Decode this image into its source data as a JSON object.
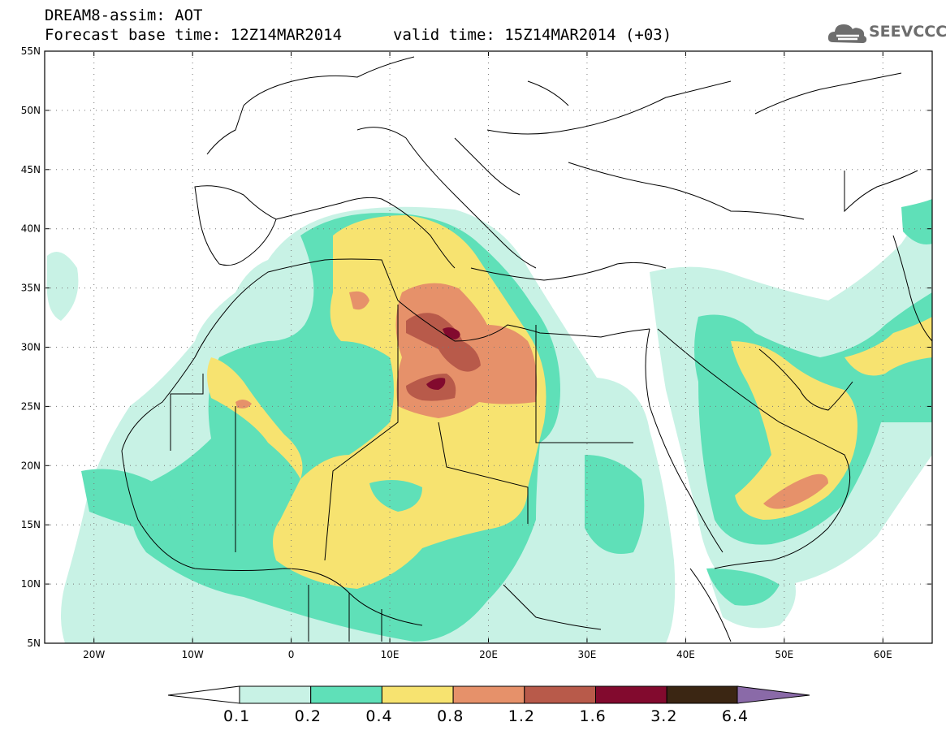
{
  "header": {
    "title": "DREAM8-assim: AOT",
    "base_time": "Forecast base time: 12Z14MAR2014",
    "valid_time": "valid time: 15Z14MAR2014 (+03)"
  },
  "logo": {
    "text": "SEEVCCC",
    "icon": "cloud-icon"
  },
  "map": {
    "lat_labels": [
      "55N",
      "50N",
      "45N",
      "40N",
      "35N",
      "30N",
      "25N",
      "20N",
      "15N",
      "10N",
      "5N"
    ],
    "lon_labels": [
      "20W",
      "10W",
      "0",
      "10E",
      "20E",
      "30E",
      "40E",
      "50E",
      "60E"
    ],
    "lon_range": [
      -25,
      65
    ],
    "lat_range": [
      5,
      55
    ]
  },
  "colorbar": {
    "labels": [
      "0.1",
      "0.2",
      "0.4",
      "0.8",
      "1.2",
      "1.6",
      "3.2",
      "6.4"
    ],
    "colors": [
      "#ffffff",
      "#c8f2e5",
      "#5fe0b8",
      "#f7e370",
      "#e6916a",
      "#b85a4a",
      "#820a2e",
      "#3b2613",
      "#8a6aa8"
    ]
  },
  "palette": {
    "l1": "#c8f2e5",
    "l2": "#5fe0b8",
    "l3": "#f7e370",
    "l4": "#e6916a",
    "l5": "#b85a4a",
    "l6": "#820a2e",
    "line": "#000000"
  }
}
